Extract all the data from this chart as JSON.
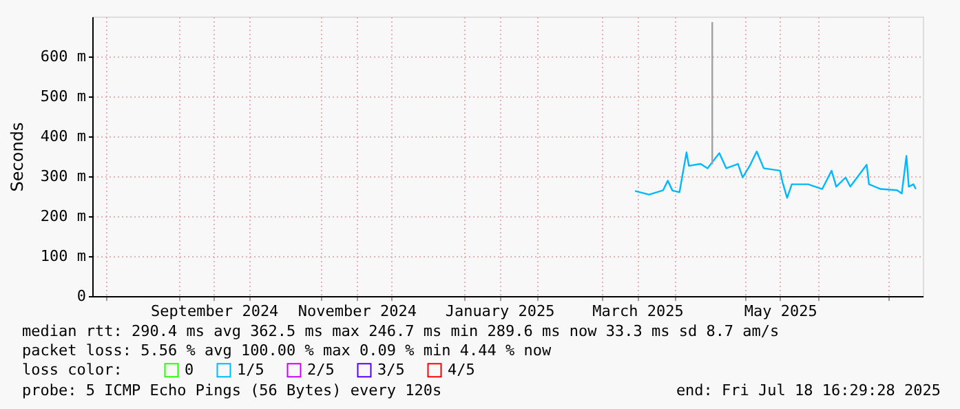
{
  "chart_data": {
    "type": "line",
    "ylabel": "Seconds",
    "legend_title": "loss color:",
    "legend": "bottom",
    "grid": true,
    "marker": "none",
    "line_style": "solid",
    "xlim": [
      "2024-07-26",
      "2025-07-16"
    ],
    "xticks": [
      {
        "value": "2024-08-01",
        "label": null
      },
      {
        "value": "2024-09-01",
        "label": null
      },
      {
        "value": "2024-09-16",
        "label": "September 2024"
      },
      {
        "value": "2024-10-01",
        "label": null
      },
      {
        "value": "2024-11-01",
        "label": null
      },
      {
        "value": "2024-11-16",
        "label": "November 2024"
      },
      {
        "value": "2024-12-01",
        "label": null
      },
      {
        "value": "2025-01-01",
        "label": null
      },
      {
        "value": "2025-01-16",
        "label": "January 2025"
      },
      {
        "value": "2025-02-01",
        "label": null
      },
      {
        "value": "2025-03-01",
        "label": null
      },
      {
        "value": "2025-03-16",
        "label": "March 2025"
      },
      {
        "value": "2025-04-01",
        "label": null
      },
      {
        "value": "2025-05-01",
        "label": null
      },
      {
        "value": "2025-05-16",
        "label": "May 2025"
      },
      {
        "value": "2025-06-01",
        "label": null
      },
      {
        "value": "2025-07-01",
        "label": null
      }
    ],
    "ylim": [
      0,
      700
    ],
    "yticks": [
      0,
      {
        "value": 100,
        "label": "100 m"
      },
      {
        "value": 200,
        "label": "200 m"
      },
      {
        "value": 300,
        "label": "300 m"
      },
      {
        "value": 400,
        "label": "400 m"
      },
      {
        "value": 500,
        "label": "500 m"
      },
      {
        "value": 600,
        "label": "600 m"
      }
    ],
    "series": [
      {
        "name": "0",
        "color": "#26ff00"
      },
      {
        "name": "1/5",
        "color": "#00b8ff",
        "x": [
          "2025-03-15",
          "2025-03-21",
          "2025-03-27",
          "2025-03-29",
          "2025-03-31",
          "2025-04-03",
          "2025-04-04",
          "2025-04-06",
          "2025-04-07",
          "2025-04-12",
          "2025-04-15",
          "2025-04-20",
          "2025-04-23",
          "2025-04-28",
          "2025-04-30",
          "2025-05-03",
          "2025-05-06",
          "2025-05-09",
          "2025-05-16",
          "2025-05-17",
          "2025-05-19",
          "2025-05-21",
          "2025-05-28",
          "2025-06-03",
          "2025-06-07",
          "2025-06-09",
          "2025-06-13",
          "2025-06-15",
          "2025-06-22",
          "2025-06-23",
          "2025-06-28",
          "2025-07-05",
          "2025-07-07",
          "2025-07-09",
          "2025-07-10",
          "2025-07-12",
          "2025-07-13"
        ],
        "values": [
          263,
          254,
          265,
          289,
          264,
          260,
          294,
          360,
          326,
          331,
          320,
          358,
          320,
          331,
          297,
          326,
          362,
          320,
          314,
          286,
          246,
          280,
          280,
          268,
          314,
          274,
          297,
          274,
          329,
          280,
          268,
          265,
          257,
          351,
          274,
          280,
          268
        ]
      },
      {
        "name": "2/5",
        "color": "#c800ff"
      },
      {
        "name": "3/5",
        "color": "#5700ff"
      },
      {
        "name": "4/5",
        "color": "#ff0000"
      },
      {
        "color": "#a0a0a0",
        "x": [
          "2025-04-17",
          "2025-04-17"
        ],
        "values": [
          330,
          686
        ]
      }
    ],
    "annotations": [
      "median rtt:  290.4 ms avg  362.5 ms max  246.7 ms min  289.6 ms now  33.3 ms sd  8.7   am/s",
      "packet loss: 5.56 % avg  100.00 % max  0.09 % min  4.44 % now",
      "probe:       5 ICMP Echo Pings (56 Bytes) every 120s",
      "end: Fri Jul 18 16:29:28 2025"
    ]
  }
}
